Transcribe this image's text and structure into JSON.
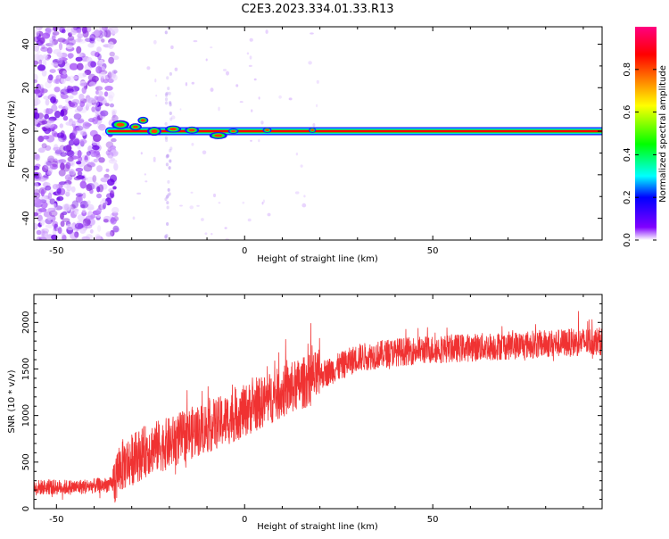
{
  "figure_title": "C2E3.2023.334.01.33.R13",
  "chart_data": [
    {
      "type": "heatmap",
      "xlabel": "Height of straight line (km)",
      "ylabel": "Frequency (Hz)",
      "xlim": [
        -56,
        95
      ],
      "ylim": [
        -50,
        48
      ],
      "xticks": [
        -50,
        0,
        50
      ],
      "yticks": [
        -40,
        -20,
        0,
        20,
        40
      ],
      "colorbar": {
        "label": "Normalized spectral amplitude",
        "range": [
          0,
          1
        ],
        "ticks": [
          "0.0",
          "0.2",
          "0.4",
          "0.6",
          "0.8"
        ],
        "tick_values": [
          0,
          0.2,
          0.4,
          0.6,
          0.8
        ],
        "colormap": [
          "#ffffff",
          "#8000ff",
          "#0000ff",
          "#00ffff",
          "#00ff00",
          "#ffff00",
          "#ff8000",
          "#ff0000",
          "#ff0080"
        ]
      },
      "features": {
        "noise_region_x": [
          -56,
          -35
        ],
        "carrier_frequency": 0.0,
        "carrier_x": [
          -36,
          95
        ],
        "speckle_x": [
          -30,
          20
        ]
      }
    },
    {
      "type": "line",
      "xlabel": "Height of straight line (km)",
      "ylabel": "SNR (10 * v/v)",
      "xlim": [
        -56,
        95
      ],
      "ylim": [
        0,
        2300
      ],
      "xticks": [
        -50,
        0,
        50
      ],
      "yticks": [
        0,
        500,
        1000,
        1500,
        2000
      ],
      "line_color": "#f03232",
      "trend": {
        "x": [
          -56,
          -45,
          -35,
          -33,
          -25,
          -20,
          -15,
          -5,
          0,
          10,
          20,
          25,
          30,
          40,
          50,
          60,
          70,
          80,
          90,
          95
        ],
        "y": [
          230,
          230,
          260,
          450,
          650,
          700,
          800,
          950,
          1050,
          1250,
          1430,
          1520,
          1620,
          1680,
          1710,
          1730,
          1750,
          1770,
          1790,
          1800
        ]
      }
    }
  ]
}
